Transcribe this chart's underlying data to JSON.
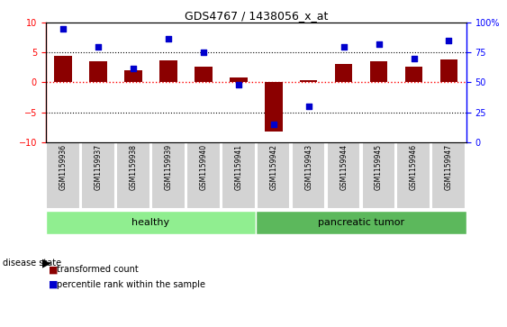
{
  "title": "GDS4767 / 1438056_x_at",
  "samples": [
    "GSM1159936",
    "GSM1159937",
    "GSM1159938",
    "GSM1159939",
    "GSM1159940",
    "GSM1159941",
    "GSM1159942",
    "GSM1159943",
    "GSM1159944",
    "GSM1159945",
    "GSM1159946",
    "GSM1159947"
  ],
  "transformed_count": [
    4.5,
    3.5,
    2.0,
    3.7,
    2.6,
    0.8,
    -8.2,
    0.3,
    3.1,
    3.5,
    2.7,
    3.9
  ],
  "percentile_rank": [
    95,
    80,
    62,
    87,
    75,
    48,
    15,
    30,
    80,
    82,
    70,
    85
  ],
  "bar_color": "#8B0000",
  "dot_color": "#0000CD",
  "ylim_left": [
    -10,
    10
  ],
  "ylim_right": [
    0,
    100
  ],
  "yticks_left": [
    -10,
    -5,
    0,
    5,
    10
  ],
  "yticks_right": [
    0,
    25,
    50,
    75,
    100
  ],
  "healthy_color": "#90EE90",
  "tumor_color": "#5CB85C",
  "label_bg_color": "#d3d3d3",
  "healthy_count": 6,
  "tumor_count": 6
}
